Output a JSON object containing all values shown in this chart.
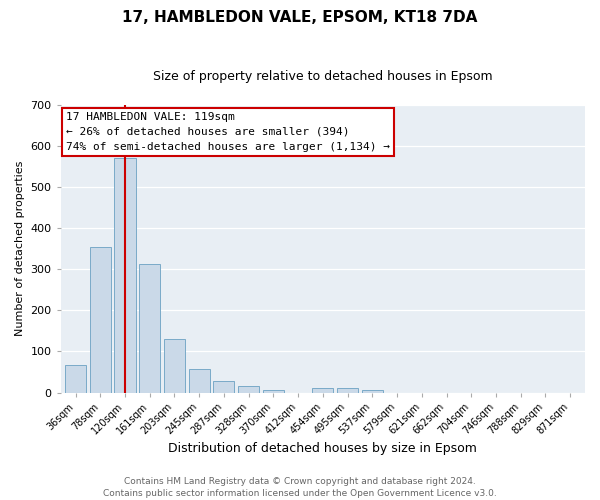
{
  "title": "17, HAMBLEDON VALE, EPSOM, KT18 7DA",
  "subtitle": "Size of property relative to detached houses in Epsom",
  "xlabel": "Distribution of detached houses by size in Epsom",
  "ylabel": "Number of detached properties",
  "bar_labels": [
    "36sqm",
    "78sqm",
    "120sqm",
    "161sqm",
    "203sqm",
    "245sqm",
    "287sqm",
    "328sqm",
    "370sqm",
    "412sqm",
    "454sqm",
    "495sqm",
    "537sqm",
    "579sqm",
    "621sqm",
    "662sqm",
    "704sqm",
    "746sqm",
    "788sqm",
    "829sqm",
    "871sqm"
  ],
  "bar_values": [
    68,
    355,
    570,
    313,
    130,
    57,
    27,
    15,
    5,
    0,
    10,
    10,
    5,
    0,
    0,
    0,
    0,
    0,
    0,
    0,
    0
  ],
  "bar_color": "#cad9e8",
  "bar_edge_color": "#7aaac8",
  "vline_x": 2,
  "vline_color": "#cc0000",
  "ylim": [
    0,
    700
  ],
  "yticks": [
    0,
    100,
    200,
    300,
    400,
    500,
    600,
    700
  ],
  "annotation_title": "17 HAMBLEDON VALE: 119sqm",
  "annotation_line1": "← 26% of detached houses are smaller (394)",
  "annotation_line2": "74% of semi-detached houses are larger (1,134) →",
  "annotation_box_color": "#ffffff",
  "annotation_box_edge": "#cc0000",
  "footer1": "Contains HM Land Registry data © Crown copyright and database right 2024.",
  "footer2": "Contains public sector information licensed under the Open Government Licence v3.0.",
  "plot_bg_color": "#e8eef4",
  "fig_bg_color": "#ffffff",
  "grid_color": "#ffffff",
  "title_fontsize": 11,
  "subtitle_fontsize": 9,
  "xlabel_fontsize": 9,
  "ylabel_fontsize": 8,
  "tick_fontsize": 7,
  "footer_fontsize": 6.5,
  "ann_fontsize": 8
}
